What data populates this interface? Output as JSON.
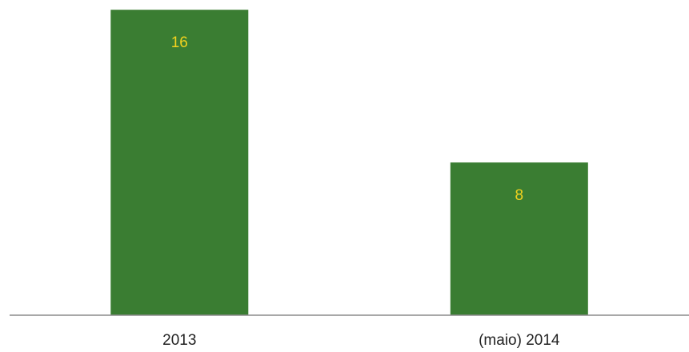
{
  "chart_data": {
    "type": "bar",
    "categories": [
      "2013",
      "(maio) 2014"
    ],
    "values": [
      16,
      8
    ],
    "data_labels": [
      "16",
      "8"
    ],
    "title": "",
    "xlabel": "",
    "ylabel": "",
    "ylim": [
      0,
      16.3
    ],
    "grid": false,
    "legend": "none",
    "colors": {
      "bar": "#3a7d32",
      "data_label": "#f2d21e",
      "axis": "#8c8c8c"
    }
  }
}
